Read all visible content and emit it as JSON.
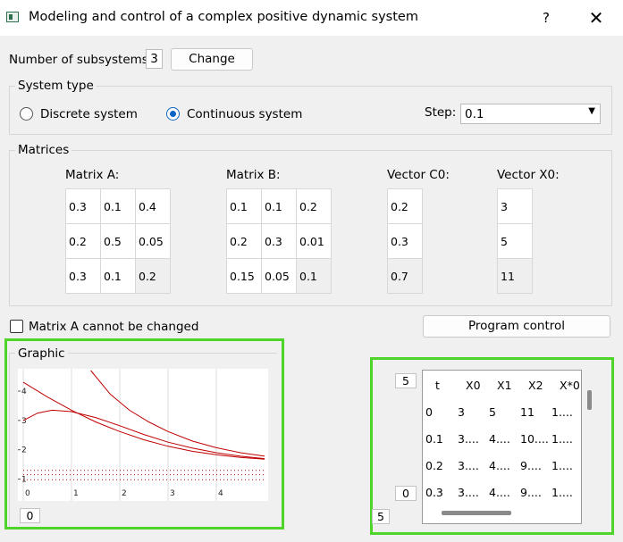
{
  "window": {
    "title": "Modeling and control of a complex positive dynamic system",
    "help_label": "?",
    "close_label": "✕"
  },
  "subsystems": {
    "label": "Number of subsystems:",
    "value": "3",
    "change_label": "Change"
  },
  "system_type": {
    "title": "System type",
    "discrete_label": "Discrete system",
    "continuous_label": "Continuous system",
    "selected": "continuous",
    "step_label": "Step:",
    "step_value": "0.1"
  },
  "matrices": {
    "title": "Matrices",
    "matrix_a": {
      "label": "Matrix A:",
      "rows": [
        [
          "0.3",
          "0.1",
          "0.4"
        ],
        [
          "0.2",
          "0.5",
          "0.05"
        ],
        [
          "0.3",
          "0.1",
          "0.2"
        ]
      ]
    },
    "matrix_b": {
      "label": "Matrix B:",
      "rows": [
        [
          "0.1",
          "0.1",
          "0.2"
        ],
        [
          "0.2",
          "0.3",
          "0.01"
        ],
        [
          "0.15",
          "0.05",
          "0.1"
        ]
      ]
    },
    "vector_c0": {
      "label": "Vector C0:",
      "rows": [
        [
          "0.2"
        ],
        [
          "0.3"
        ],
        [
          "0.7"
        ]
      ]
    },
    "vector_x0": {
      "label": "Vector X0:",
      "rows": [
        [
          "3"
        ],
        [
          "5"
        ],
        [
          "11"
        ]
      ]
    }
  },
  "lock_checkbox": {
    "label": "Matrix A cannot be changed",
    "checked": false
  },
  "program_control_label": "Program control",
  "graphic": {
    "title": "Graphic",
    "spin_value": "0"
  },
  "chart_data": {
    "type": "line",
    "title": "",
    "xlabel": "",
    "ylabel": "",
    "xlim": [
      0,
      5
    ],
    "ylim": [
      0.5,
      4.7
    ],
    "x_ticks": [
      "0",
      "1",
      "2",
      "3",
      "4"
    ],
    "y_ticks": [
      "1",
      "2",
      "3",
      "4"
    ],
    "grid": true,
    "series": [
      {
        "color": "#c00000",
        "style": "solid",
        "x": [
          0,
          0.5,
          1,
          1.5,
          2,
          2.5,
          3,
          3.5,
          4,
          4.5,
          5
        ],
        "y": [
          4.3,
          3.8,
          3.35,
          2.95,
          2.62,
          2.34,
          2.12,
          1.95,
          1.83,
          1.74,
          1.68
        ]
      },
      {
        "color": "#c00000",
        "style": "solid",
        "x": [
          1.4,
          1.8,
          2.2,
          2.6,
          3,
          3.5,
          4,
          4.5,
          5
        ],
        "y": [
          4.7,
          3.9,
          3.35,
          2.95,
          2.62,
          2.3,
          2.07,
          1.9,
          1.78
        ]
      },
      {
        "color": "#c00000",
        "style": "solid",
        "x": [
          0,
          0.3,
          0.6,
          1,
          1.5,
          2,
          2.5,
          3,
          3.5,
          4,
          4.5,
          5
        ],
        "y": [
          3.0,
          3.25,
          3.35,
          3.3,
          3.1,
          2.82,
          2.52,
          2.26,
          2.06,
          1.9,
          1.78,
          1.7
        ]
      },
      {
        "color": "#c00000",
        "style": "dotted",
        "x": [
          0,
          5
        ],
        "y": [
          1.3,
          1.3
        ]
      },
      {
        "color": "#c00000",
        "style": "dotted",
        "x": [
          0,
          5
        ],
        "y": [
          1.15,
          1.15
        ]
      },
      {
        "color": "#c00000",
        "style": "dotted",
        "x": [
          0,
          5
        ],
        "y": [
          0.98,
          0.98
        ]
      }
    ]
  },
  "table_panel": {
    "spin_top": "5",
    "spin_mid": "0",
    "spin_bottom": "5",
    "headers": [
      "t",
      "X0",
      "X1",
      "X2",
      "X*0"
    ],
    "rows": [
      [
        "0",
        "3",
        "5",
        "11",
        "1...."
      ],
      [
        "0.1",
        "3....",
        "4....",
        "10....",
        "1...."
      ],
      [
        "0.2",
        "3....",
        "4....",
        "9....",
        "1...."
      ],
      [
        "0.3",
        "3....",
        "4....",
        "9....",
        "1...."
      ]
    ]
  }
}
